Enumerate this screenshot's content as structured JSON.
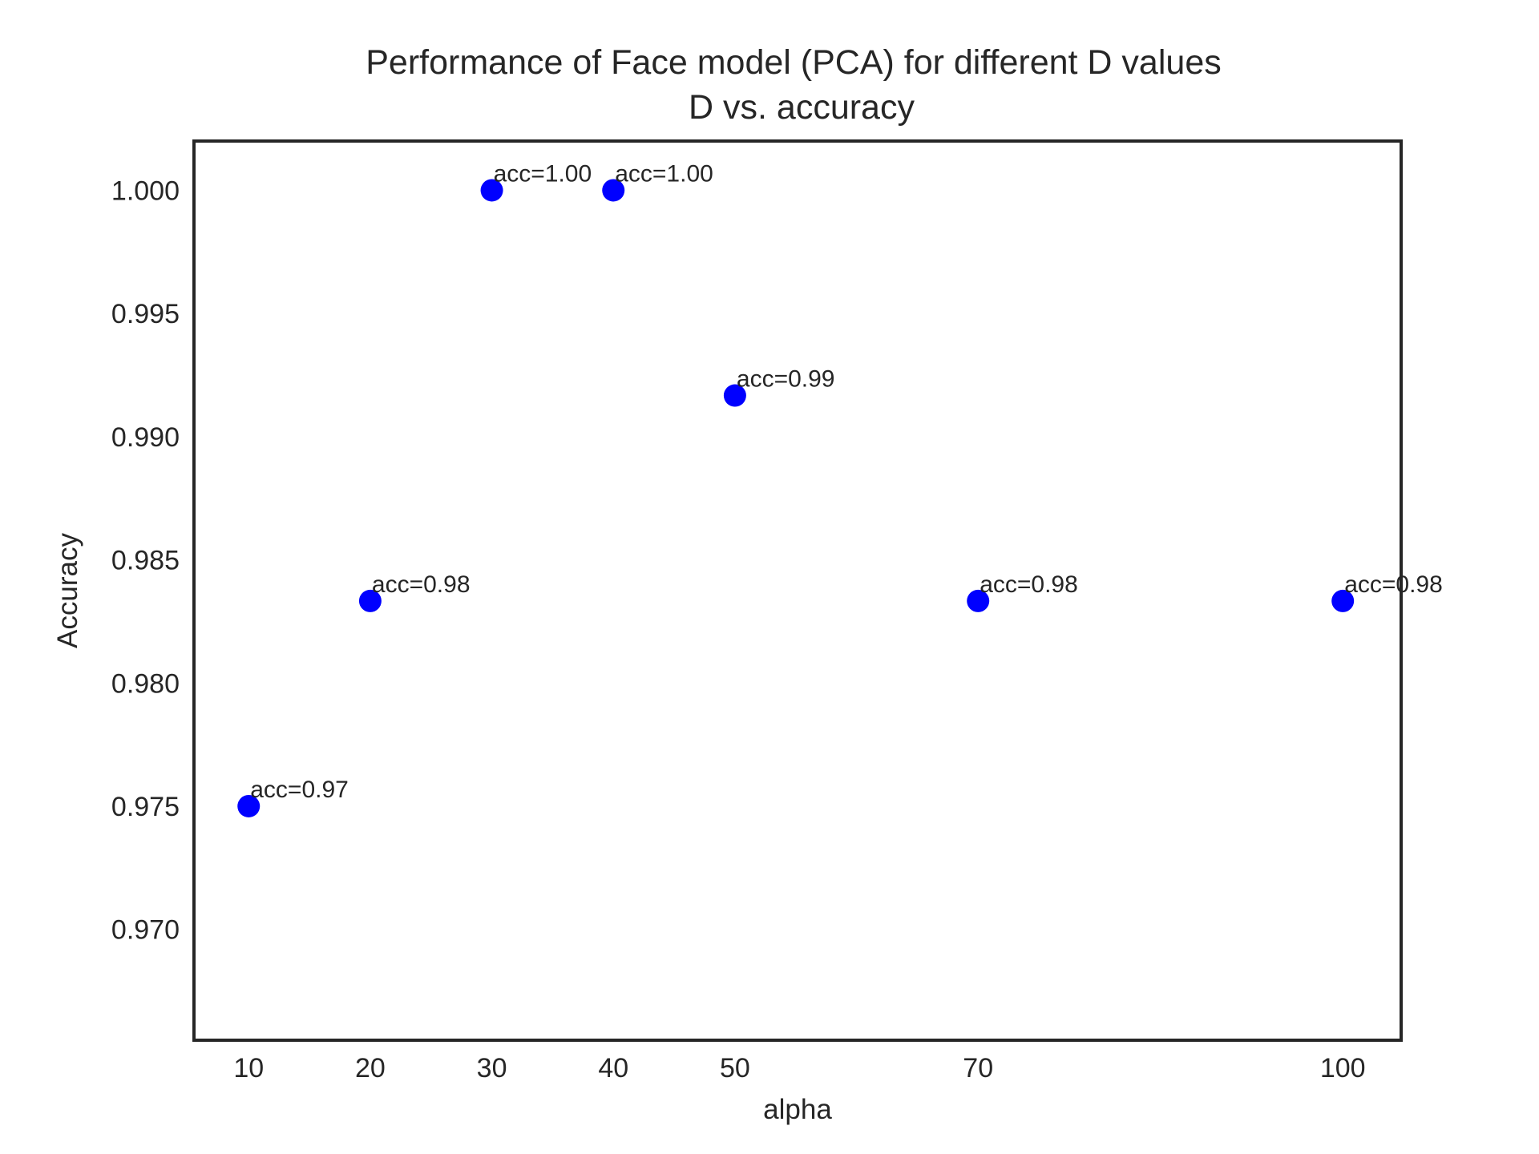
{
  "chart_data": {
    "type": "scatter",
    "title": "Performance of Face model (PCA) for different D values",
    "subtitle": "D vs. accuracy",
    "xlabel": "alpha",
    "ylabel": "Accuracy",
    "x_ticks": [
      "10",
      "20",
      "30",
      "40",
      "50",
      "70",
      "100"
    ],
    "y_ticks": [
      "0.970",
      "0.975",
      "0.980",
      "0.985",
      "0.990",
      "0.995",
      "1.000"
    ],
    "ylim": [
      0.9655,
      1.002
    ],
    "xlim": [
      5.5,
      104.8
    ],
    "grid": false,
    "marker_color": "#0000ff",
    "points": [
      {
        "x": 10,
        "y": 0.975,
        "label": "acc=0.97"
      },
      {
        "x": 20,
        "y": 0.98333,
        "label": "acc=0.98"
      },
      {
        "x": 30,
        "y": 1.0,
        "label": "acc=1.00"
      },
      {
        "x": 40,
        "y": 1.0,
        "label": "acc=1.00"
      },
      {
        "x": 50,
        "y": 0.99167,
        "label": "acc=0.99"
      },
      {
        "x": 70,
        "y": 0.98333,
        "label": "acc=0.98"
      },
      {
        "x": 100,
        "y": 0.98333,
        "label": "acc=0.98"
      }
    ]
  }
}
